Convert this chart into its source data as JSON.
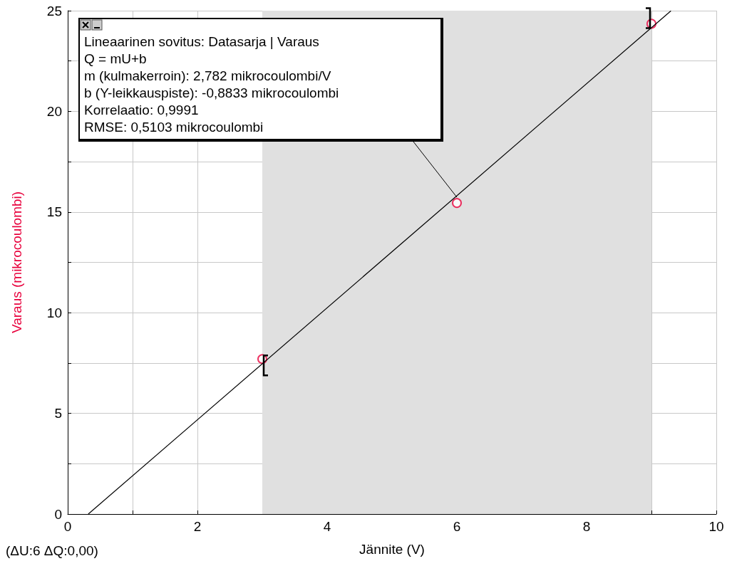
{
  "chart_data": {
    "type": "scatter",
    "xlabel": "Jännite (V)",
    "ylabel": "Varaus (mikrocoulombi)",
    "series": [
      {
        "color": "#e8003c",
        "x": [
          3,
          6,
          9
        ],
        "values": [
          7.7,
          15.45,
          24.35
        ],
        "marker": "circle"
      },
      {
        "type": "line",
        "color": "#000000",
        "x": [
          0.3175,
          9.3
        ],
        "values": [
          0,
          24.99
        ],
        "marker": "none"
      }
    ],
    "xlim": [
      0,
      10
    ],
    "ylim": [
      0,
      25
    ],
    "xticks": [
      0,
      {
        "value": 1,
        "label": null
      },
      2,
      {
        "value": 3,
        "label": null
      },
      4,
      {
        "value": 5,
        "label": null
      },
      6,
      {
        "value": 7,
        "label": null
      },
      8,
      {
        "value": 9,
        "label": null
      },
      10
    ],
    "yticks": [
      0,
      {
        "value": 2.5,
        "label": null
      },
      5,
      {
        "value": 7.5,
        "label": null
      },
      10,
      {
        "value": 12.5,
        "label": null
      },
      15,
      {
        "value": 17.5,
        "label": null
      },
      20,
      {
        "value": 22.5,
        "label": null
      },
      25
    ],
    "grid": true,
    "bands": [
      {
        "axis": "x",
        "from": 3,
        "to": 9,
        "label": null,
        "color": "#e0e0e0"
      }
    ],
    "annotations": [
      "Lineaarinen sovitus: Datasarja | Varaus",
      "Q = mU+b",
      "m (kulmakerroin): 2,782 mikrocoulombi/V",
      "b (Y-leikkauspiste): -0,8833 mikrocoulombi",
      "Korrelaatio: 0,9991",
      "RMSE: 0,5103 mikrocoulombi",
      "(ΔU:6 ΔQ:0,00)"
    ]
  }
}
